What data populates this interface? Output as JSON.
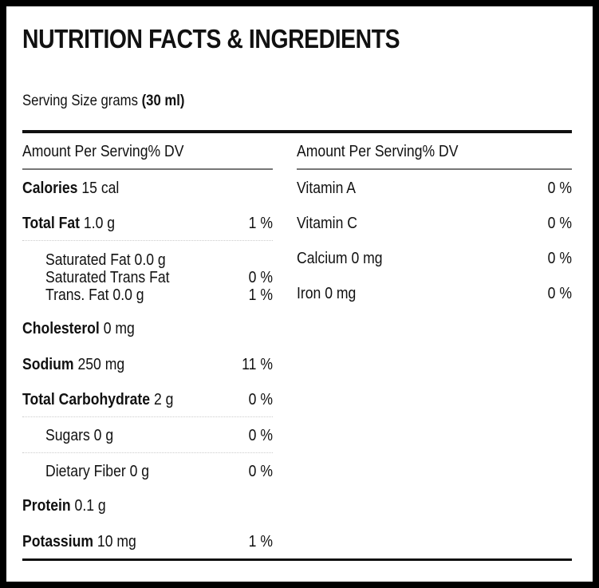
{
  "title": "NUTRITION FACTS & INGREDIENTS",
  "serving": {
    "label": "Serving Size grams",
    "value": "(30 ml)"
  },
  "left_column": {
    "header": "Amount Per Serving% DV",
    "rows": [
      {
        "name": "Calories",
        "amount": "15 cal",
        "dv": ""
      },
      {
        "name": "Total Fat",
        "amount": "1.0 g",
        "dv": "1 %"
      },
      {
        "name": "Saturated Fat 0.0 g",
        "amount": "",
        "dv": ""
      },
      {
        "name": "Saturated Trans Fat",
        "amount": "",
        "dv": "0 %"
      },
      {
        "name": "Trans. Fat 0.0 g",
        "amount": "",
        "dv": "1 %"
      },
      {
        "name": "Cholesterol",
        "amount": "0 mg",
        "dv": ""
      },
      {
        "name": "Sodium",
        "amount": "250 mg",
        "dv": "11 %"
      },
      {
        "name": "Total Carbohydrate",
        "amount": "2 g",
        "dv": "0 %"
      },
      {
        "name": "Sugars 0 g",
        "amount": "",
        "dv": "0 %"
      },
      {
        "name": "Dietary Fiber 0 g",
        "amount": "",
        "dv": "0 %"
      },
      {
        "name": "Protein",
        "amount": "0.1 g",
        "dv": ""
      },
      {
        "name": "Potassium",
        "amount": "10 mg",
        "dv": "1 %"
      }
    ]
  },
  "right_column": {
    "header": "Amount Per Serving% DV",
    "rows": [
      {
        "name": "Vitamin A",
        "dv": "0 %"
      },
      {
        "name": "Vitamin C",
        "dv": "0 %"
      },
      {
        "name": "Calcium 0 mg",
        "dv": "0 %"
      },
      {
        "name": "Iron 0 mg",
        "dv": "0 %"
      }
    ]
  }
}
